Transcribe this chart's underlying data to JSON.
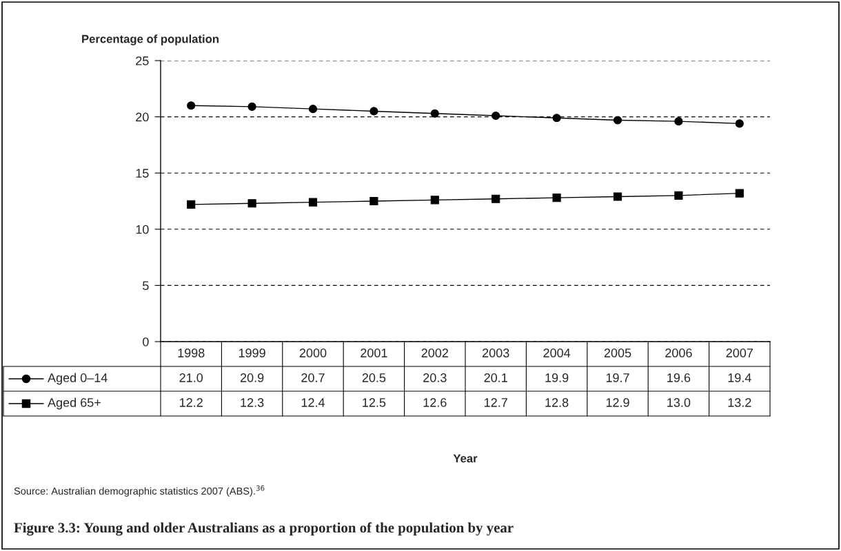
{
  "chart_data": {
    "type": "line",
    "title": "Figure 3.3: Young and older Australians as a proportion of the population by year",
    "ylabel": "Percentage of population",
    "annotations": [
      "Year",
      "Source: Australian demographic statistics 2007 (ABS).$^{36}$"
    ],
    "categories": [
      "1998",
      "1999",
      "2000",
      "2001",
      "2002",
      "2003",
      "2004",
      "2005",
      "2006",
      "2007"
    ],
    "series": [
      {
        "name": "Aged 0–14",
        "color": "#000000",
        "marker": "circle",
        "values": [
          21.0,
          20.9,
          20.7,
          20.5,
          20.3,
          20.1,
          19.9,
          19.7,
          19.6,
          19.4
        ],
        "value_labels": [
          "21.0",
          "20.9",
          "20.7",
          "20.5",
          "20.3",
          "20.1",
          "19.9",
          "19.7",
          "19.6",
          "19.4"
        ]
      },
      {
        "name": "Aged 65+",
        "color": "#000000",
        "marker": "square",
        "values": [
          12.2,
          12.3,
          12.4,
          12.5,
          12.6,
          12.7,
          12.8,
          12.9,
          13.0,
          13.2
        ],
        "value_labels": [
          "12.2",
          "12.3",
          "12.4",
          "12.5",
          "12.6",
          "12.7",
          "12.8",
          "12.9",
          "13.0",
          "13.2"
        ]
      }
    ],
    "ylim": [
      0,
      25
    ],
    "yticks": [
      0,
      5,
      10,
      15,
      20,
      25
    ],
    "grid": "y",
    "legend": "bottom left",
    "line_style": "solid"
  }
}
